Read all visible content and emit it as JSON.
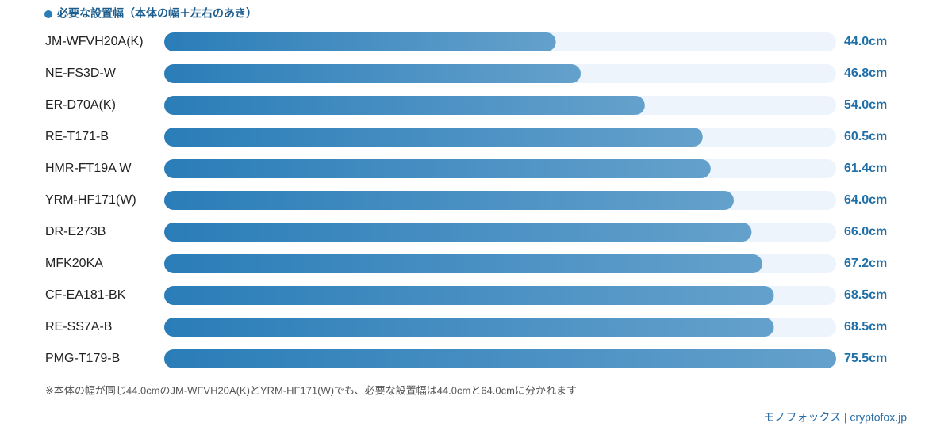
{
  "chart_data": {
    "type": "bar",
    "orientation": "horizontal",
    "title": "必要な設置幅（本体の幅＋左右のあき）",
    "categories": [
      "JM-WFVH20A(K)",
      "NE-FS3D-W",
      "ER-D70A(K)",
      "RE-T171-B",
      "HMR-FT19A W",
      "YRM-HF171(W)",
      "DR-E273B",
      "MFK20KA",
      "CF-EA181-BK",
      "RE-SS7A-B",
      "PMG-T179-B"
    ],
    "values": [
      44.0,
      46.8,
      54.0,
      60.5,
      61.4,
      64.0,
      66.0,
      67.2,
      68.5,
      68.5,
      75.5
    ],
    "value_labels": [
      "44.0cm",
      "46.8cm",
      "54.0cm",
      "60.5cm",
      "61.4cm",
      "64.0cm",
      "66.0cm",
      "67.2cm",
      "68.5cm",
      "68.5cm",
      "75.5cm"
    ],
    "xlim": [
      0,
      75.5
    ],
    "color": "#2a7db8",
    "note": "※本体の幅が同じ44.0cmのJM-WFVH20A(K)とYRM-HF171(W)でも、必要な設置幅は44.0cmと64.0cmに分かれます",
    "source": "モノフォックス | cryptofox.jp"
  }
}
